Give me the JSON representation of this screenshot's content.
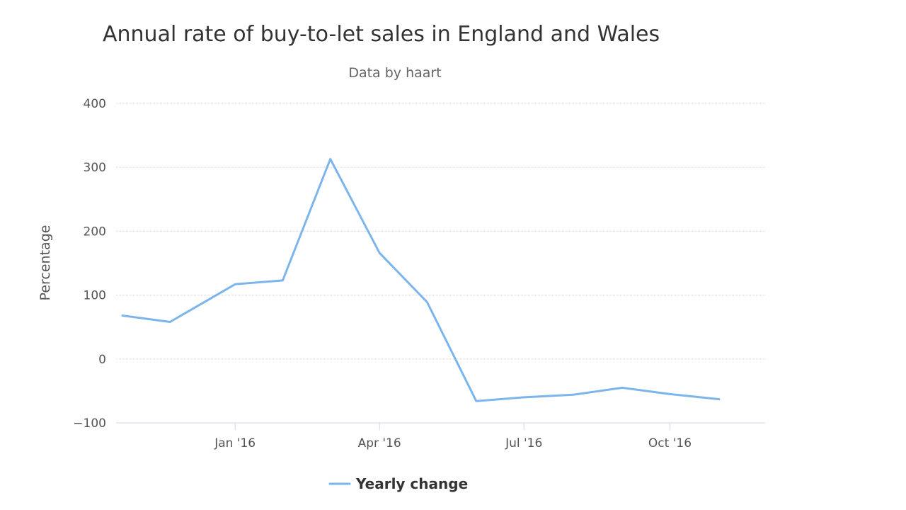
{
  "chart_data": {
    "type": "line",
    "title": "Annual rate of buy-to-let sales in England and Wales",
    "subtitle": "Data by haart",
    "xlabel": "",
    "ylabel": "Percentage",
    "ylim": [
      -100,
      400
    ],
    "yticks": [
      -100,
      0,
      100,
      200,
      300,
      400
    ],
    "xlim": [
      "2015-10-18",
      "2016-11-30"
    ],
    "xticks": [
      {
        "label": "Jan '16",
        "date": "2016-01-01"
      },
      {
        "label": "Apr '16",
        "date": "2016-04-01"
      },
      {
        "label": "Jul '16",
        "date": "2016-07-01"
      },
      {
        "label": "Oct '16",
        "date": "2016-10-01"
      }
    ],
    "grid": true,
    "legend_position": "bottom-center",
    "series": [
      {
        "name": "Yearly change",
        "color": "#7cb5ec",
        "points": [
          {
            "x": "2015-10-22",
            "y": 68
          },
          {
            "x": "2015-11-21",
            "y": 58
          },
          {
            "x": "2016-01-01",
            "y": 117
          },
          {
            "x": "2016-01-31",
            "y": 123
          },
          {
            "x": "2016-03-01",
            "y": 313
          },
          {
            "x": "2016-04-01",
            "y": 166
          },
          {
            "x": "2016-05-01",
            "y": 89
          },
          {
            "x": "2016-06-01",
            "y": -66
          },
          {
            "x": "2016-07-01",
            "y": -60
          },
          {
            "x": "2016-08-01",
            "y": -56
          },
          {
            "x": "2016-09-01",
            "y": -45
          },
          {
            "x": "2016-10-01",
            "y": -55
          },
          {
            "x": "2016-11-01",
            "y": -63
          }
        ]
      }
    ]
  }
}
